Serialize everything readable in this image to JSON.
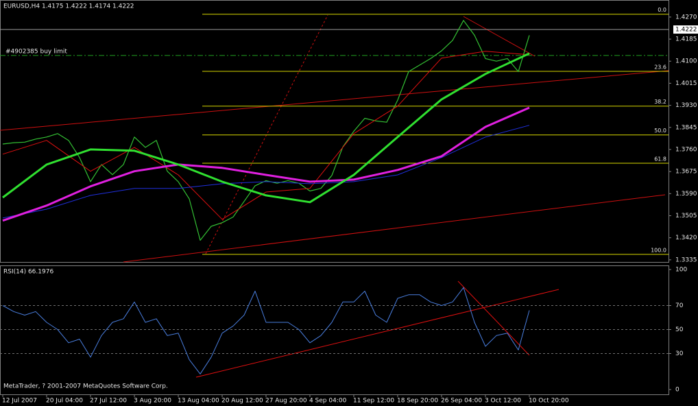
{
  "window": {
    "copyright": "MetaTrader, ? 2001-2007 MetaQuotes Software Corp."
  },
  "chart_data": [
    {
      "type": "line",
      "title": "EURUSD,H4  1.4175 1.4222 1.4174 1.4222",
      "xlim": [
        -0.25,
        60.69
      ],
      "xticks": [
        {
          "value": 0,
          "label": "12 Jul 2007"
        },
        {
          "value": 4,
          "label": "20 Jul 04:00"
        },
        {
          "value": 8,
          "label": "27 Jul 12:00"
        },
        {
          "value": 12,
          "label": "3 Aug 20:00"
        },
        {
          "value": 16,
          "label": "13 Aug 04:00"
        },
        {
          "value": 20,
          "label": "20 Aug 12:00"
        },
        {
          "value": 24,
          "label": "27 Aug 20:00"
        },
        {
          "value": 28,
          "label": "4 Sep 04:00"
        },
        {
          "value": 32,
          "label": "11 Sep 12:00"
        },
        {
          "value": 36,
          "label": "18 Sep 20:00"
        },
        {
          "value": 40,
          "label": "26 Sep 04:00"
        },
        {
          "value": 44,
          "label": "3 Oct 12:00"
        },
        {
          "value": 48,
          "label": "10 Oct 20:00"
        }
      ],
      "ylim": [
        1.3324,
        1.4304
      ],
      "yticks": [
        {
          "value": 1.427,
          "label": "1.4270"
        },
        1.4185,
        {
          "value": 1.41,
          "label": "1.4100"
        },
        1.4015,
        {
          "value": 1.393,
          "label": "1.3930"
        },
        1.3845,
        {
          "value": 1.376,
          "label": "1.3760"
        },
        1.3675,
        {
          "value": 1.359,
          "label": "1.3590"
        },
        1.3505,
        {
          "value": 1.342,
          "label": "1.3420"
        },
        1.3335
      ],
      "series": [
        {
          "color": "#34c234",
          "width": 1.2,
          "x": [
            0,
            1,
            2,
            3,
            4,
            5,
            6,
            7,
            8,
            9,
            10,
            11,
            12,
            13,
            14,
            15,
            16,
            17,
            18,
            19,
            20,
            21,
            22,
            23,
            24,
            25,
            26,
            27,
            28,
            29,
            30,
            31,
            32,
            33,
            34,
            35,
            36,
            37,
            38,
            39,
            40,
            41,
            42,
            43,
            44,
            45,
            46,
            47,
            48
          ],
          "values": [
            1.3781,
            1.3786,
            1.3788,
            1.38,
            1.3808,
            1.3821,
            1.3795,
            1.3729,
            1.3636,
            1.3702,
            1.3663,
            1.3702,
            1.3808,
            1.3768,
            1.3795,
            1.3676,
            1.3636,
            1.357,
            1.341,
            1.3464,
            1.3478,
            1.35,
            1.356,
            1.362,
            1.364,
            1.363,
            1.364,
            1.363,
            1.36,
            1.361,
            1.366,
            1.377,
            1.383,
            1.388,
            1.387,
            1.3865,
            1.395,
            1.406,
            1.4085,
            1.411,
            1.414,
            1.418,
            1.4257,
            1.42,
            1.411,
            1.41,
            1.411,
            1.406,
            1.42
          ]
        },
        {
          "color": "#e01010",
          "width": 1,
          "x": [
            0,
            4,
            8,
            12,
            16,
            20,
            24,
            28,
            32,
            36,
            40,
            44,
            48
          ],
          "values": [
            1.3742,
            1.3795,
            1.3676,
            1.3768,
            1.3662,
            1.3491,
            1.3596,
            1.361,
            1.3821,
            1.3927,
            1.4112,
            1.4138,
            1.4125
          ]
        },
        {
          "color": "#2030e0",
          "width": 1,
          "x": [
            0,
            4,
            8,
            12,
            16,
            20,
            24,
            28,
            32,
            36,
            40,
            44,
            48
          ],
          "values": [
            1.3496,
            1.353,
            1.3583,
            1.361,
            1.361,
            1.3628,
            1.3636,
            1.3628,
            1.3636,
            1.3662,
            1.3729,
            1.3808,
            1.3853
          ]
        },
        {
          "color": "#e020e0",
          "width": 3,
          "x": [
            0,
            4,
            8,
            12,
            16,
            20,
            24,
            28,
            32,
            36,
            40,
            44,
            48
          ],
          "values": [
            1.3486,
            1.3544,
            1.3618,
            1.3676,
            1.3702,
            1.3689,
            1.3662,
            1.3636,
            1.3644,
            1.3681,
            1.3734,
            1.3847,
            1.3921
          ]
        },
        {
          "color": "#30e030",
          "width": 3,
          "x": [
            0,
            4,
            8,
            12,
            16,
            20,
            24,
            28,
            32,
            36,
            40,
            44,
            48
          ],
          "values": [
            1.3575,
            1.3702,
            1.376,
            1.3755,
            1.3702,
            1.3636,
            1.3583,
            1.3557,
            1.3662,
            1.3808,
            1.3953,
            1.4051,
            1.413
          ]
        }
      ],
      "fib_levels": [
        {
          "value": 1.4281,
          "label": "0.0"
        },
        {
          "value": 1.4061,
          "label": "23.6"
        },
        {
          "value": 1.3927,
          "label": "38.2"
        },
        {
          "value": 1.3816,
          "label": "50.0"
        },
        {
          "value": 1.3707,
          "label": "61.8"
        },
        {
          "value": 1.3356,
          "label": "100.0"
        }
      ],
      "fib_color": "#d8d800",
      "order": {
        "value": 1.4122,
        "label": "#4902385 buy limit",
        "color": "#20a020"
      },
      "price_line": {
        "value": 1.4222,
        "label": "1.4222"
      }
    },
    {
      "type": "line",
      "title": "RSI(14) 66.1976",
      "xlim": [
        -0.25,
        60.69
      ],
      "ylim": [
        0,
        100
      ],
      "yticks": [
        100,
        70,
        50,
        30,
        0
      ],
      "grid": true,
      "series": [
        {
          "color": "#4a7fe0",
          "width": 1,
          "x": [
            0,
            1,
            2,
            3,
            4,
            5,
            6,
            7,
            8,
            9,
            10,
            11,
            12,
            13,
            14,
            15,
            16,
            17,
            18,
            19,
            20,
            21,
            22,
            23,
            24,
            25,
            26,
            27,
            28,
            29,
            30,
            31,
            32,
            33,
            34,
            35,
            36,
            37,
            38,
            39,
            40,
            41,
            42,
            43,
            44,
            45,
            46,
            47,
            48
          ],
          "values": [
            70,
            65,
            62,
            65,
            56,
            50,
            39,
            42,
            27,
            45,
            56,
            59,
            73,
            56,
            59,
            45,
            47,
            25,
            13,
            27,
            47,
            53,
            62,
            82,
            56,
            56,
            56,
            50,
            39,
            45,
            56,
            73,
            73,
            82,
            62,
            56,
            76,
            79,
            79,
            73,
            70,
            73,
            85,
            56,
            36,
            45,
            47,
            33,
            66
          ]
        }
      ]
    }
  ]
}
